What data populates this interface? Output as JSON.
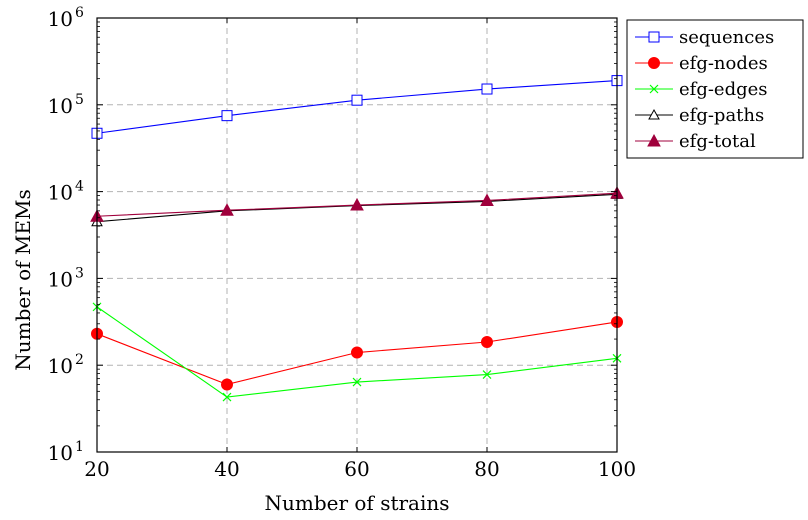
{
  "chart_data": {
    "type": "line",
    "xlabel": "Number of strains",
    "ylabel": "Number of MEMs",
    "x": [
      20,
      40,
      60,
      80,
      100
    ],
    "xlim": [
      20,
      100
    ],
    "ylim": [
      10,
      1000000
    ],
    "yscale": "log",
    "grid": true,
    "legend_position": "outside-top-right",
    "x_ticks": [
      "20",
      "40",
      "60",
      "80",
      "100"
    ],
    "y_ticks": [
      {
        "base": "10",
        "exp": "1",
        "value": 10
      },
      {
        "base": "10",
        "exp": "2",
        "value": 100
      },
      {
        "base": "10",
        "exp": "3",
        "value": 1000
      },
      {
        "base": "10",
        "exp": "4",
        "value": 10000
      },
      {
        "base": "10",
        "exp": "5",
        "value": 100000
      },
      {
        "base": "10",
        "exp": "6",
        "value": 1000000
      }
    ],
    "series": [
      {
        "name": "sequences",
        "values": [
          47000,
          75000,
          113000,
          152000,
          190000
        ],
        "color": "#0000ff",
        "marker": "square-open"
      },
      {
        "name": "efg-nodes",
        "values": [
          230,
          60,
          140,
          185,
          315
        ],
        "color": "#ff0000",
        "marker": "circle-filled"
      },
      {
        "name": "efg-edges",
        "values": [
          470,
          43,
          64,
          78,
          120
        ],
        "color": "#00ff00",
        "marker": "cross"
      },
      {
        "name": "efg-paths",
        "values": [
          4500,
          6000,
          6900,
          7700,
          9300
        ],
        "color": "#000000",
        "marker": "triangle-open"
      },
      {
        "name": "efg-total",
        "values": [
          5200,
          6100,
          7000,
          7900,
          9600
        ],
        "color": "#a0003c",
        "marker": "triangle-filled"
      }
    ]
  }
}
